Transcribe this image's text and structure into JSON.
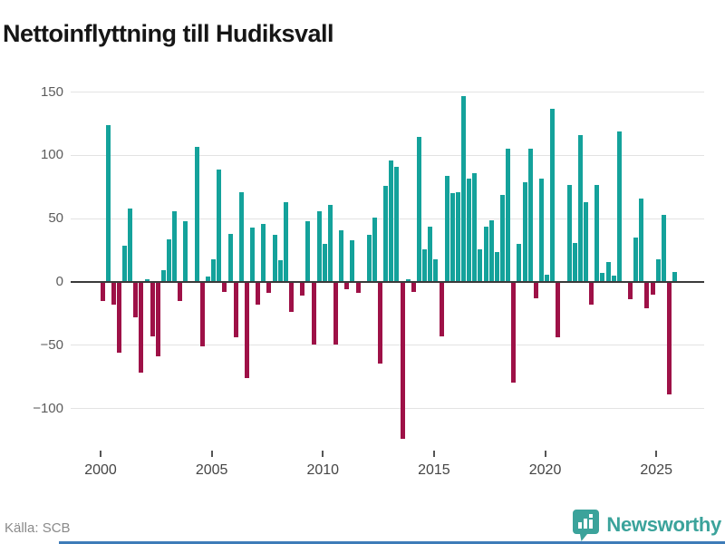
{
  "title": "Nettoinflyttning till Hudiksvall",
  "source": "Källa: SCB",
  "brand": "Newsworthy",
  "colors": {
    "positive": "#14a29b",
    "negative": "#9e1147",
    "zero_line": "#3a3a3a",
    "gridline": "#e3e3e3",
    "title_text": "#161616",
    "axis_text": "#5c5c5c",
    "year_text": "#454545",
    "tick_mark": "#555555",
    "source_text": "#8a8a8a",
    "brand_teal": "#3ba39b",
    "bottom_bar": "#3e7cb8"
  },
  "chart_data": {
    "type": "bar",
    "title": "Nettoinflyttning till Hudiksvall",
    "ylabel": "",
    "xlabel": "",
    "frequency": "quarterly",
    "x_start": "2000 Q1",
    "x_end": "2025 Q4",
    "x_tick_labels": [
      "2000",
      "2005",
      "2010",
      "2015",
      "2020",
      "2025"
    ],
    "y_ticks": [
      150,
      100,
      50,
      0,
      -50,
      -100
    ],
    "y_tick_labels": [
      "150",
      "100",
      "50",
      "0",
      "−50",
      "−100"
    ],
    "ylim": [
      -130,
      155
    ],
    "grid": "horizontal",
    "legend": "none",
    "positive_color": "#14a29b",
    "negative_color": "#9e1147",
    "years": [
      {
        "year": 2000,
        "q": [
          -14,
          124,
          -17,
          -55
        ]
      },
      {
        "year": 2001,
        "q": [
          29,
          58,
          -27,
          -71
        ]
      },
      {
        "year": 2002,
        "q": [
          2,
          -42,
          -58,
          9
        ]
      },
      {
        "year": 2003,
        "q": [
          34,
          56,
          -14,
          48
        ]
      },
      {
        "year": 2004,
        "q": [
          0,
          107,
          -50,
          4
        ]
      },
      {
        "year": 2005,
        "q": [
          18,
          89,
          -7,
          38
        ]
      },
      {
        "year": 2006,
        "q": [
          -43,
          71,
          -75,
          43
        ]
      },
      {
        "year": 2007,
        "q": [
          -17,
          46,
          -8,
          37
        ]
      },
      {
        "year": 2008,
        "q": [
          17,
          63,
          -23,
          0
        ]
      },
      {
        "year": 2009,
        "q": [
          -10,
          48,
          -49,
          56
        ]
      },
      {
        "year": 2010,
        "q": [
          30,
          61,
          -49,
          41
        ]
      },
      {
        "year": 2011,
        "q": [
          -5,
          33,
          -8,
          0
        ]
      },
      {
        "year": 2012,
        "q": [
          37,
          51,
          -64,
          76
        ]
      },
      {
        "year": 2013,
        "q": [
          96,
          91,
          -123,
          2
        ]
      },
      {
        "year": 2014,
        "q": [
          -7,
          115,
          26,
          44
        ]
      },
      {
        "year": 2015,
        "q": [
          18,
          -42,
          84,
          70
        ]
      },
      {
        "year": 2016,
        "q": [
          71,
          147,
          82,
          86
        ]
      },
      {
        "year": 2017,
        "q": [
          26,
          44,
          49,
          24
        ]
      },
      {
        "year": 2018,
        "q": [
          69,
          105,
          -79,
          30
        ]
      },
      {
        "year": 2019,
        "q": [
          79,
          105,
          -12,
          82
        ]
      },
      {
        "year": 2020,
        "q": [
          6,
          137,
          -43,
          0
        ]
      },
      {
        "year": 2021,
        "q": [
          77,
          31,
          116,
          63
        ]
      },
      {
        "year": 2022,
        "q": [
          -17,
          77,
          7,
          16
        ]
      },
      {
        "year": 2023,
        "q": [
          5,
          119,
          0,
          -13
        ]
      },
      {
        "year": 2024,
        "q": [
          35,
          66,
          -20,
          -9
        ]
      },
      {
        "year": 2025,
        "q": [
          18,
          53,
          -88,
          8
        ]
      }
    ]
  }
}
